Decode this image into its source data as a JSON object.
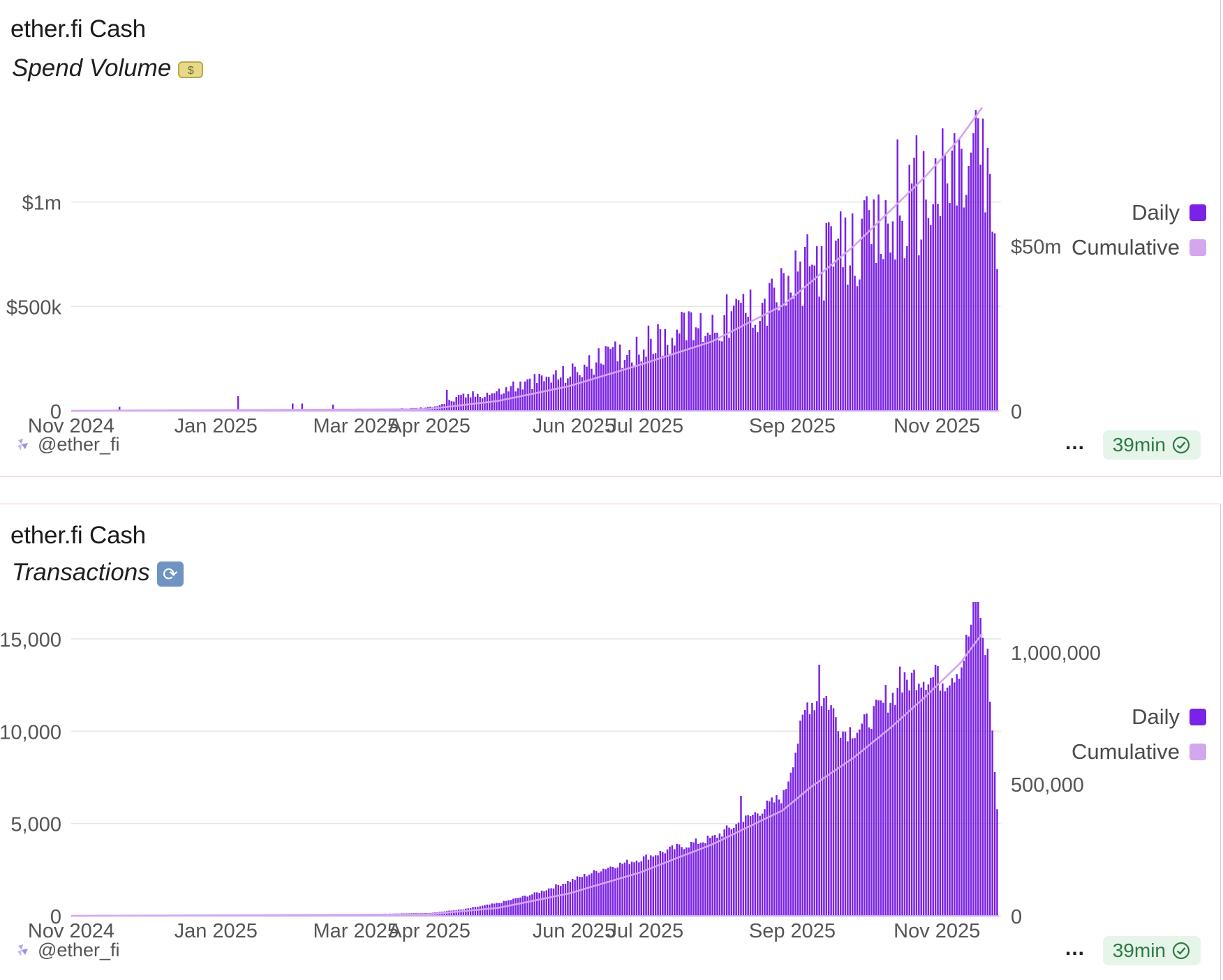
{
  "panels": [
    {
      "title": "ether.fi Cash",
      "subtitle": "Spend Volume",
      "emoji_icon": "dollar-banknote-icon",
      "emoji_glyph": "$",
      "handle": "@ether_fi",
      "menu_label": "...",
      "refresh_badge": "39min",
      "legend": [
        "Daily",
        "Cumulative"
      ],
      "colors": {
        "daily": "#7a22e6",
        "cumulative": "#d4a6ee",
        "grid": "#e6e6e6"
      }
    },
    {
      "title": "ether.fi Cash",
      "subtitle": "Transactions",
      "emoji_icon": "arrows-cycle-icon",
      "emoji_glyph": "🔄",
      "handle": "@ether_fi",
      "menu_label": "...",
      "refresh_badge": "39min",
      "legend": [
        "Daily",
        "Cumulative"
      ],
      "colors": {
        "daily": "#7a22e6",
        "cumulative": "#d4a6ee",
        "grid": "#e6e6e6"
      }
    }
  ],
  "chart_data": [
    {
      "type": "bar",
      "x_ticks": [
        "Nov 2024",
        "Jan 2025",
        "Mar 2025",
        "Apr 2025",
        "Jun 2025",
        "Jul 2025",
        "Sep 2025",
        "Nov 2025"
      ],
      "x_range": [
        "Nov 2024",
        "Nov 2025"
      ],
      "y_left_ticks": [
        "0",
        "$500k",
        "$1m"
      ],
      "y_left_ticks_values": [
        0,
        500000,
        1000000
      ],
      "y_left_range": [
        0,
        1500000
      ],
      "y_right_ticks": [
        "0",
        "$50m"
      ],
      "y_right_ticks_values": [
        0,
        50000000
      ],
      "y_right_range": [
        0,
        95000000
      ],
      "grid": true,
      "legend_position": "right",
      "series": [
        {
          "name": "Daily",
          "axis": "left",
          "kind": "bar",
          "anchors": [
            [
              0,
              2000
            ],
            [
              30,
              5000
            ],
            [
              60,
              3000
            ],
            [
              90,
              2000
            ],
            [
              120,
              3000
            ],
            [
              150,
              15000
            ],
            [
              158,
              40000
            ],
            [
              165,
              70000
            ],
            [
              180,
              90000
            ],
            [
              195,
              140000
            ],
            [
              210,
              180000
            ],
            [
              225,
              250000
            ],
            [
              240,
              310000
            ],
            [
              255,
              370000
            ],
            [
              270,
              420000
            ],
            [
              285,
              480000
            ],
            [
              300,
              560000
            ],
            [
              315,
              720000
            ],
            [
              330,
              780000
            ],
            [
              345,
              860000
            ],
            [
              360,
              1050000
            ],
            [
              375,
              1120000
            ],
            [
              383,
              1200000
            ],
            [
              390,
              800000
            ]
          ],
          "spikes": [
            [
              20,
              20000
            ],
            [
              70,
              70000
            ],
            [
              93,
              35000
            ],
            [
              97,
              35000
            ],
            [
              110,
              30000
            ],
            [
              158,
              100000
            ],
            [
              186,
              140000
            ],
            [
              225,
              310000
            ],
            [
              258,
              470000
            ],
            [
              283,
              560000
            ],
            [
              296,
              590000
            ],
            [
              318,
              900000
            ],
            [
              333,
              920000
            ],
            [
              348,
              1300000
            ],
            [
              356,
              1320000
            ],
            [
              372,
              1330000
            ],
            [
              381,
              1440000
            ],
            [
              384,
              1400000
            ]
          ]
        },
        {
          "name": "Cumulative",
          "axis": "right",
          "kind": "line",
          "anchors": [
            [
              0,
              0
            ],
            [
              150,
              500000
            ],
            [
              180,
              3000000
            ],
            [
              210,
              7500000
            ],
            [
              240,
              14000000
            ],
            [
              270,
              21000000
            ],
            [
              300,
              32000000
            ],
            [
              330,
              50000000
            ],
            [
              360,
              71000000
            ],
            [
              375,
              83000000
            ],
            [
              384,
              92000000
            ]
          ]
        }
      ]
    },
    {
      "type": "bar",
      "x_ticks": [
        "Nov 2024",
        "Jan 2025",
        "Mar 2025",
        "Apr 2025",
        "Jun 2025",
        "Jul 2025",
        "Sep 2025",
        "Nov 2025"
      ],
      "x_range": [
        "Nov 2024",
        "Nov 2025"
      ],
      "y_left_ticks": [
        "0",
        "5,000",
        "10,000",
        "15,000"
      ],
      "y_left_ticks_values": [
        0,
        5000,
        10000,
        15000
      ],
      "y_left_range": [
        0,
        17000
      ],
      "y_right_ticks": [
        "0",
        "500,000",
        "1,000,000"
      ],
      "y_right_ticks_values": [
        0,
        500000,
        1000000
      ],
      "y_right_range": [
        0,
        1190000
      ],
      "grid": true,
      "legend_position": "right",
      "series": [
        {
          "name": "Daily",
          "axis": "left",
          "kind": "bar",
          "anchors": [
            [
              0,
              30
            ],
            [
              100,
              60
            ],
            [
              150,
              150
            ],
            [
              165,
              350
            ],
            [
              180,
              700
            ],
            [
              195,
              1200
            ],
            [
              210,
              1900
            ],
            [
              225,
              2600
            ],
            [
              240,
              3100
            ],
            [
              255,
              3700
            ],
            [
              270,
              4200
            ],
            [
              285,
              5300
            ],
            [
              300,
              6500
            ],
            [
              310,
              11500
            ],
            [
              318,
              11800
            ],
            [
              325,
              10000
            ],
            [
              333,
              10200
            ],
            [
              340,
              11200
            ],
            [
              355,
              13000
            ],
            [
              368,
              12800
            ],
            [
              375,
              13600
            ],
            [
              381,
              16800
            ],
            [
              386,
              14000
            ],
            [
              390,
              5800
            ]
          ],
          "spikes": [
            [
              282,
              6500
            ],
            [
              315,
              13600
            ],
            [
              343,
              12500
            ],
            [
              349,
              13500
            ],
            [
              364,
              13600
            ],
            [
              382,
              17000
            ]
          ]
        },
        {
          "name": "Cumulative",
          "axis": "right",
          "kind": "line",
          "anchors": [
            [
              0,
              0
            ],
            [
              150,
              5000
            ],
            [
              180,
              30000
            ],
            [
              210,
              85000
            ],
            [
              240,
              165000
            ],
            [
              270,
              270000
            ],
            [
              300,
              400000
            ],
            [
              312,
              490000
            ],
            [
              330,
              600000
            ],
            [
              345,
              710000
            ],
            [
              360,
              830000
            ],
            [
              375,
              960000
            ],
            [
              384,
              1070000
            ]
          ]
        }
      ]
    }
  ]
}
